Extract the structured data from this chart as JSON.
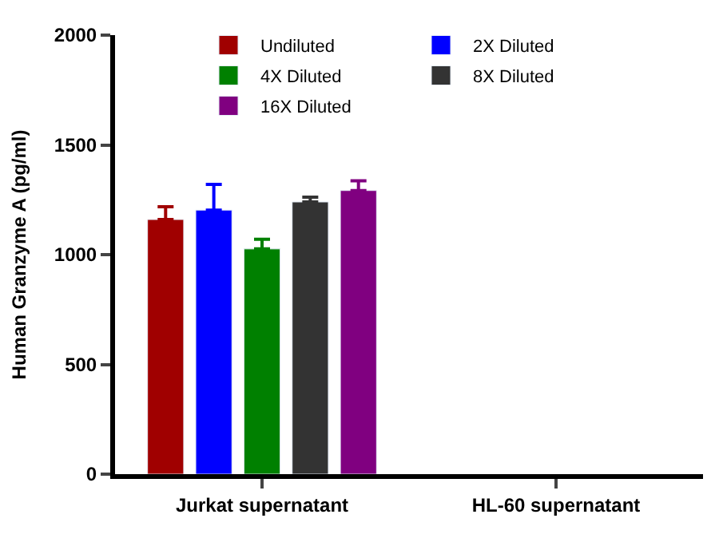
{
  "chart_data": {
    "type": "bar",
    "ylabel": "Human Granzyme A (pg/ml)",
    "categories": [
      "Jurkat supernatant",
      "HL-60 supernatant"
    ],
    "series": [
      {
        "name": "Undiluted",
        "color": "#a00000",
        "values": [
          1160,
          null
        ],
        "errors": [
          [
            1160,
            1218
          ],
          null
        ]
      },
      {
        "name": "2X Diluted",
        "color": "#0000ff",
        "values": [
          1203,
          null
        ],
        "errors": [
          [
            1203,
            1320
          ],
          null
        ]
      },
      {
        "name": "4X Diluted",
        "color": "#008000",
        "values": [
          1026,
          null
        ],
        "errors": [
          [
            1026,
            1070
          ],
          null
        ]
      },
      {
        "name": "8X Diluted",
        "color": "#333333",
        "values": [
          1240,
          null
        ],
        "errors": [
          [
            1240,
            1262
          ],
          null
        ]
      },
      {
        "name": "16X Diluted",
        "color": "#800080",
        "values": [
          1292,
          null
        ],
        "errors": [
          [
            1292,
            1336
          ],
          null
        ]
      }
    ],
    "ylim": [
      0,
      2000
    ],
    "yticks": [
      0,
      500,
      1000,
      1500,
      2000
    ],
    "legend": "top"
  }
}
